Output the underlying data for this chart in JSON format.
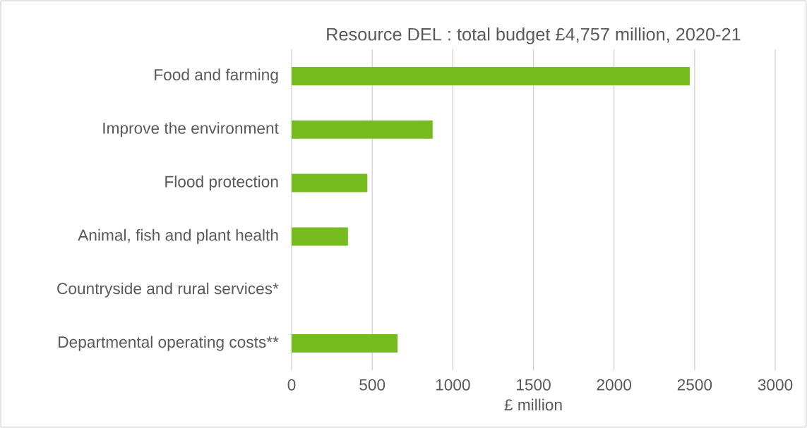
{
  "chart_data": {
    "type": "bar",
    "orientation": "horizontal",
    "title": "Resource DEL : total budget £4,757 million, 2020-21",
    "xlabel": "£ million",
    "categories": [
      "Food and farming",
      "Improve the environment",
      "Flood protection",
      "Animal, fish and plant health",
      "Countryside and rural services*",
      "Departmental operating costs**"
    ],
    "values": [
      2470,
      875,
      470,
      350,
      null,
      657
    ],
    "color": "#77bc1f",
    "xlim": [
      0,
      3000
    ],
    "xticks": [
      0,
      500,
      1000,
      1500,
      2000,
      2500,
      3000
    ],
    "grid": "x"
  }
}
